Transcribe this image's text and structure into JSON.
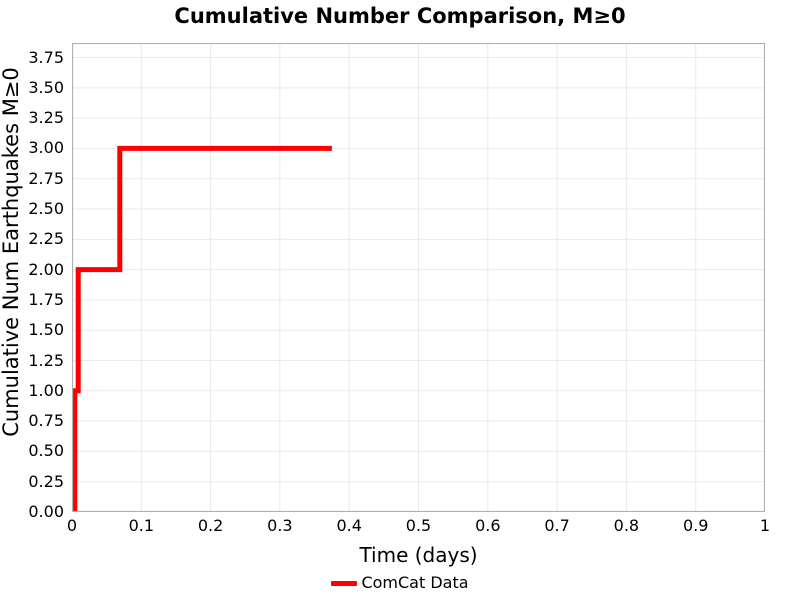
{
  "figure": {
    "background": "#ffffff"
  },
  "colors": {
    "series_line": "#ff0000",
    "spine": "#b0b0b0",
    "grid": "#e9e9e9",
    "text": "#000000"
  },
  "legend": {
    "position": "bottom-center",
    "entries": [
      {
        "label": "ComCat Data",
        "color": "#ff0000"
      }
    ]
  },
  "chart_data": {
    "type": "line",
    "subtype": "step-post",
    "title": "Cumulative Number Comparison, M≥0",
    "xlabel": "Time (days)",
    "ylabel": "Cumulative Num Earthquakes M≥0",
    "xlim": [
      0,
      1
    ],
    "ylim": [
      0,
      3.87
    ],
    "grid": true,
    "x_ticks": [
      0,
      0.1,
      0.2,
      0.3,
      0.4,
      0.5,
      0.6,
      0.7,
      0.8,
      0.9,
      1
    ],
    "x_tick_labels": [
      "0",
      "0.1",
      "0.2",
      "0.3",
      "0.4",
      "0.5",
      "0.6",
      "0.7",
      "0.8",
      "0.9",
      "1"
    ],
    "y_ticks": [
      0,
      0.25,
      0.5,
      0.75,
      1,
      1.25,
      1.5,
      1.75,
      2,
      2.25,
      2.5,
      2.75,
      3,
      3.25,
      3.5,
      3.75
    ],
    "y_tick_labels": [
      "0.00",
      "0.25",
      "0.50",
      "0.75",
      "1.00",
      "1.25",
      "1.50",
      "1.75",
      "2.00",
      "2.25",
      "2.50",
      "2.75",
      "3.00",
      "3.25",
      "3.50",
      "3.75"
    ],
    "series": [
      {
        "name": "ComCat Data",
        "color": "#ff0000",
        "line_width": 5,
        "points": [
          {
            "x": 0.004,
            "y": 0
          },
          {
            "x": 0.004,
            "y": 1
          },
          {
            "x": 0.009,
            "y": 1
          },
          {
            "x": 0.009,
            "y": 2
          },
          {
            "x": 0.069,
            "y": 2
          },
          {
            "x": 0.069,
            "y": 3
          },
          {
            "x": 0.375,
            "y": 3
          }
        ]
      }
    ]
  }
}
